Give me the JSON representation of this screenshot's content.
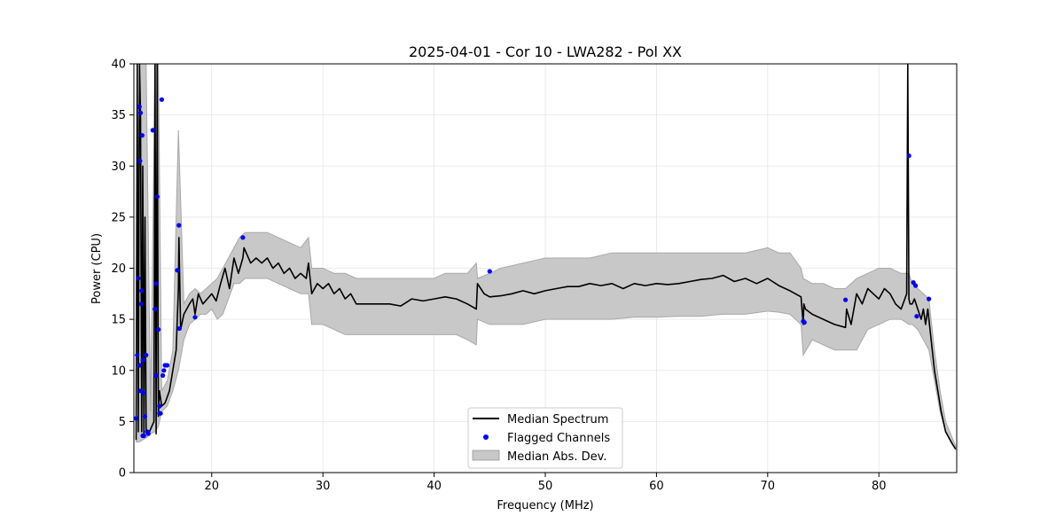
{
  "chart_data": {
    "type": "line",
    "title": "2025-04-01 - Cor 10 - LWA282 - Pol XX",
    "xlabel": "Frequency (MHz)",
    "ylabel": "Power (CPU)",
    "xlim": [
      13,
      87
    ],
    "ylim": [
      0,
      40
    ],
    "xticks": [
      20,
      30,
      40,
      50,
      60,
      70,
      80
    ],
    "yticks": [
      0,
      5,
      10,
      15,
      20,
      25,
      30,
      35,
      40
    ],
    "grid": true,
    "legend_position": "bottom-center",
    "series": [
      {
        "name": "Median Spectrum",
        "kind": "line",
        "color": "#000000",
        "x": [
          13.2,
          13.3,
          13.4,
          13.5,
          13.6,
          13.7,
          13.8,
          13.9,
          14.0,
          14.1,
          14.2,
          14.4,
          14.6,
          14.8,
          14.9,
          15.0,
          15.1,
          15.2,
          15.3,
          15.5,
          15.8,
          16.2,
          16.5,
          16.8,
          17.0,
          17.05,
          17.2,
          17.5,
          18.0,
          18.3,
          18.5,
          18.8,
          19.2,
          19.6,
          20.0,
          20.4,
          20.8,
          21.2,
          21.6,
          22.0,
          22.4,
          22.8,
          22.9,
          23.5,
          24.0,
          24.5,
          25.0,
          25.5,
          26.0,
          26.5,
          27.0,
          27.5,
          28.0,
          28.5,
          28.7,
          29.0,
          29.5,
          30.0,
          30.5,
          31.0,
          31.5,
          32.0,
          32.5,
          33.0,
          34.0,
          35.0,
          36.0,
          37.0,
          38.0,
          39.0,
          40.0,
          41.0,
          42.0,
          43.0,
          43.8,
          43.9,
          44.5,
          45.0,
          46.0,
          47.0,
          48.0,
          49.0,
          50.0,
          51.0,
          52.0,
          53.0,
          54.0,
          55.0,
          56.0,
          57.0,
          58.0,
          59.0,
          60.0,
          61.0,
          62.0,
          63.0,
          64.0,
          65.0,
          66.0,
          67.0,
          68.0,
          69.0,
          70.0,
          71.0,
          72.0,
          73.0,
          73.2,
          73.25,
          73.4,
          74.0,
          75.0,
          76.0,
          77.0,
          77.1,
          77.5,
          78.0,
          78.5,
          79.0,
          79.5,
          80.0,
          80.5,
          81.0,
          81.5,
          82.0,
          82.5,
          82.6,
          82.7,
          82.8,
          83.0,
          83.2,
          83.5,
          83.8,
          84.0,
          84.2,
          84.4,
          84.6,
          84.8,
          85.0,
          85.3,
          85.6,
          86.0,
          86.5,
          86.9
        ],
        "y": [
          3.2,
          40,
          4,
          40,
          35,
          4,
          30,
          3.6,
          25,
          4,
          3.8,
          4,
          4.5,
          5,
          40,
          3.8,
          40,
          5.5,
          8,
          6.5,
          6.8,
          8,
          10,
          12,
          18,
          23,
          14,
          15.5,
          16.5,
          17,
          15.5,
          17.5,
          16.5,
          17,
          17.5,
          16.8,
          18.5,
          20,
          18,
          21,
          19.5,
          21,
          22,
          20.5,
          21,
          20.5,
          21,
          20,
          20.5,
          19.5,
          20,
          19,
          19.5,
          19,
          20.5,
          17.5,
          18.5,
          18,
          18.5,
          17.5,
          18,
          17,
          17.5,
          16.5,
          16.5,
          16.5,
          16.5,
          16.3,
          17,
          16.8,
          17,
          17.2,
          17,
          16.5,
          16,
          18.5,
          17.5,
          17.2,
          17.3,
          17.5,
          17.8,
          17.5,
          17.8,
          18,
          18.2,
          18.2,
          18.5,
          18.3,
          18.5,
          18,
          18.5,
          18.3,
          18.5,
          18.4,
          18.5,
          18.7,
          18.9,
          19,
          19.3,
          18.7,
          19,
          18.5,
          19,
          18.3,
          17.8,
          17.2,
          14.5,
          16.5,
          16,
          15.5,
          15,
          14.5,
          14.2,
          16,
          14.5,
          17.5,
          16.5,
          18,
          17.5,
          17,
          18,
          17.5,
          16.5,
          16,
          17.5,
          40,
          17,
          16.5,
          16.5,
          17,
          16,
          15,
          16,
          14.5,
          16,
          14,
          12,
          10,
          8,
          6,
          4,
          3,
          2.3
        ]
      },
      {
        "name": "Flagged Channels",
        "kind": "scatter",
        "color": "#0000ff",
        "x": [
          13.3,
          13.4,
          13.5,
          13.55,
          13.6,
          13.65,
          13.7,
          13.75,
          13.8,
          13.85,
          13.9,
          14.0,
          14.1,
          14.3,
          13.6,
          13.5,
          14.7,
          14.9,
          15.0,
          15.1,
          15.2,
          15.3,
          15.4,
          15.5,
          15.6,
          15.7,
          15.8,
          16.0,
          16.9,
          17.05,
          17.1,
          18.5,
          22.8,
          45.0,
          73.2,
          73.3,
          77.0,
          82.7,
          83.1,
          83.3,
          83.4,
          84.5,
          13.2,
          13.8,
          14.2,
          15.0,
          15.3
        ],
        "y": [
          11.5,
          19,
          35.8,
          30.5,
          35.2,
          16.5,
          17.8,
          33,
          11,
          7.8,
          3.6,
          5.5,
          11.5,
          3.8,
          8,
          10.5,
          33.5,
          16,
          18.5,
          27,
          14,
          6.5,
          5.8,
          36.5,
          9.5,
          10,
          10.5,
          10.5,
          19.8,
          24.2,
          14.1,
          15.2,
          23,
          19.7,
          14.8,
          14.7,
          16.9,
          31,
          18.6,
          18.3,
          15.3,
          17,
          5.3,
          3.6,
          4,
          9.5,
          5.8
        ]
      }
    ],
    "band": {
      "name": "Median Abs. Dev.",
      "color": "#c8c8c8",
      "x": [
        13.2,
        13.5,
        13.8,
        14.1,
        14.5,
        14.9,
        15.2,
        15.5,
        16.0,
        16.5,
        17.0,
        17.5,
        18.0,
        18.5,
        19.0,
        19.5,
        20.0,
        20.5,
        21.0,
        21.5,
        22.0,
        22.5,
        23.0,
        24.0,
        25.0,
        26.0,
        27.0,
        28.0,
        28.7,
        29.0,
        30.0,
        31.0,
        32.0,
        33.0,
        34.0,
        35.0,
        36.0,
        37.0,
        38.0,
        39.0,
        40.0,
        41.0,
        42.0,
        43.0,
        43.8,
        43.9,
        45.0,
        46.0,
        48.0,
        50.0,
        52.0,
        54.0,
        56.0,
        58.0,
        60.0,
        62.0,
        64.0,
        66.0,
        68.0,
        70.0,
        71.0,
        72.0,
        73.0,
        73.2,
        74.0,
        75.0,
        76.0,
        77.0,
        78.0,
        79.0,
        80.0,
        81.0,
        82.0,
        82.7,
        83.0,
        83.5,
        84.0,
        84.5,
        85.0,
        85.5,
        86.0,
        86.9
      ],
      "upper": [
        4.5,
        40,
        40,
        40,
        6,
        40,
        40,
        8,
        9,
        12,
        33.5,
        16.5,
        17.5,
        18,
        17.5,
        18,
        18.5,
        19,
        20,
        21,
        22,
        23,
        23.5,
        23.5,
        23.5,
        23,
        22.5,
        22,
        23,
        20,
        20,
        19.5,
        19.5,
        19,
        19,
        19,
        19,
        19,
        19,
        19,
        19,
        19.5,
        19.5,
        19.5,
        20.5,
        19,
        19.5,
        20,
        20.5,
        21,
        21,
        21,
        21.5,
        21.5,
        21.5,
        21.5,
        21.5,
        21.5,
        21.5,
        22,
        21.5,
        21.5,
        20,
        19,
        18.5,
        18.5,
        18,
        18,
        19,
        19.5,
        20,
        20,
        19.5,
        19.5,
        18.5,
        18,
        17.5,
        17,
        12,
        8,
        5,
        2.6
      ],
      "lower": [
        3,
        3,
        3.2,
        3.4,
        3.8,
        4,
        4.5,
        6,
        6.5,
        8,
        10,
        13,
        14.5,
        15,
        15.5,
        15.5,
        16,
        15,
        15.5,
        17,
        18.5,
        18.5,
        19,
        19,
        19,
        18.5,
        18,
        17.5,
        17.5,
        14.5,
        14.5,
        14,
        13.5,
        13.5,
        13.5,
        13.5,
        13.5,
        13.5,
        13.5,
        13.5,
        13.5,
        13.5,
        13.5,
        13,
        12.5,
        15,
        14.5,
        14.5,
        14.5,
        15,
        15,
        15,
        15,
        15.2,
        15.2,
        15.3,
        15.3,
        15.5,
        15.5,
        15.8,
        15.7,
        15.5,
        14.5,
        11.5,
        13,
        12.5,
        12,
        12,
        12,
        14,
        14.5,
        15,
        15,
        14.5,
        14.5,
        14,
        13,
        12,
        9,
        6,
        4,
        2.3
      ]
    }
  }
}
